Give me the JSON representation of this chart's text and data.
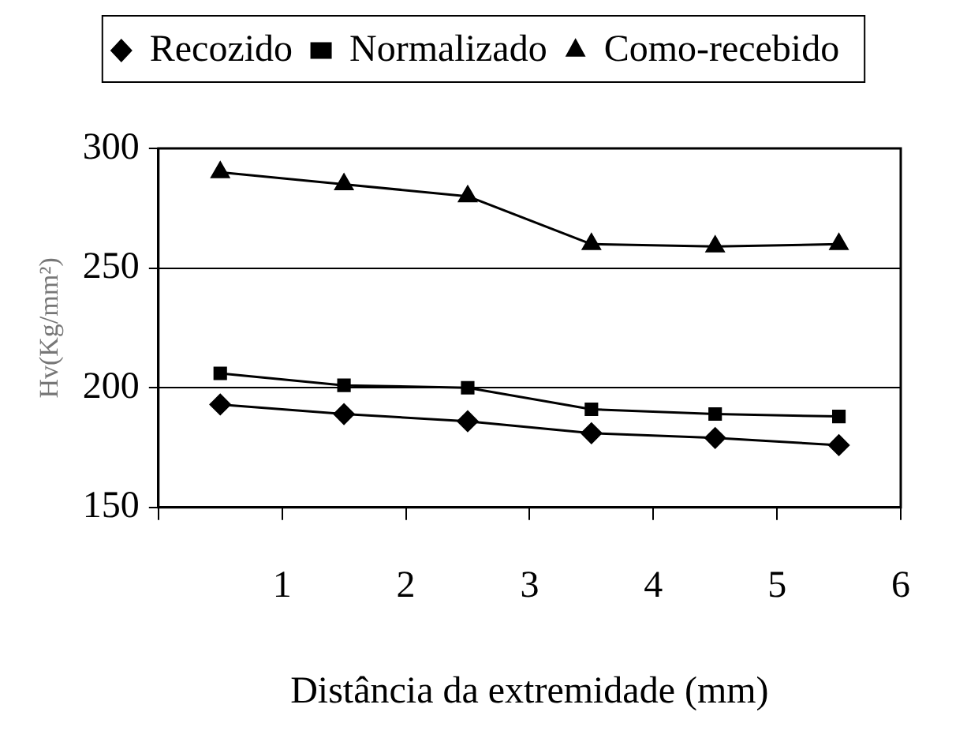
{
  "chart_data": {
    "type": "line",
    "xlabel": "Distância da extremidade (mm)",
    "ylabel": "Hv(Kg/mm²)",
    "xlim": [
      0,
      6
    ],
    "xticks": [
      {
        "value": 0,
        "label": null
      },
      1,
      2,
      3,
      4,
      5,
      6
    ],
    "ylim": [
      150,
      300
    ],
    "yticks": [
      150,
      200,
      250,
      300
    ],
    "grid": "y",
    "legend": "top",
    "series": [
      {
        "name": "Recozido",
        "color": "#000000",
        "marker": "diamond",
        "x": [
          0.5,
          1.5,
          2.5,
          3.5,
          4.5,
          5.5
        ],
        "values": [
          193,
          189,
          186,
          181,
          179,
          176
        ]
      },
      {
        "name": "Normalizado",
        "color": "#000000",
        "marker": "square",
        "x": [
          0.5,
          1.5,
          2.5,
          3.5,
          4.5,
          5.5
        ],
        "values": [
          206,
          201,
          200,
          191,
          189,
          188
        ]
      },
      {
        "name": "Como-recebido",
        "color": "#000000",
        "marker": "triangle",
        "x": [
          0.5,
          1.5,
          2.5,
          3.5,
          4.5,
          5.5
        ],
        "values": [
          290,
          285,
          280,
          260,
          259,
          260
        ]
      }
    ]
  }
}
